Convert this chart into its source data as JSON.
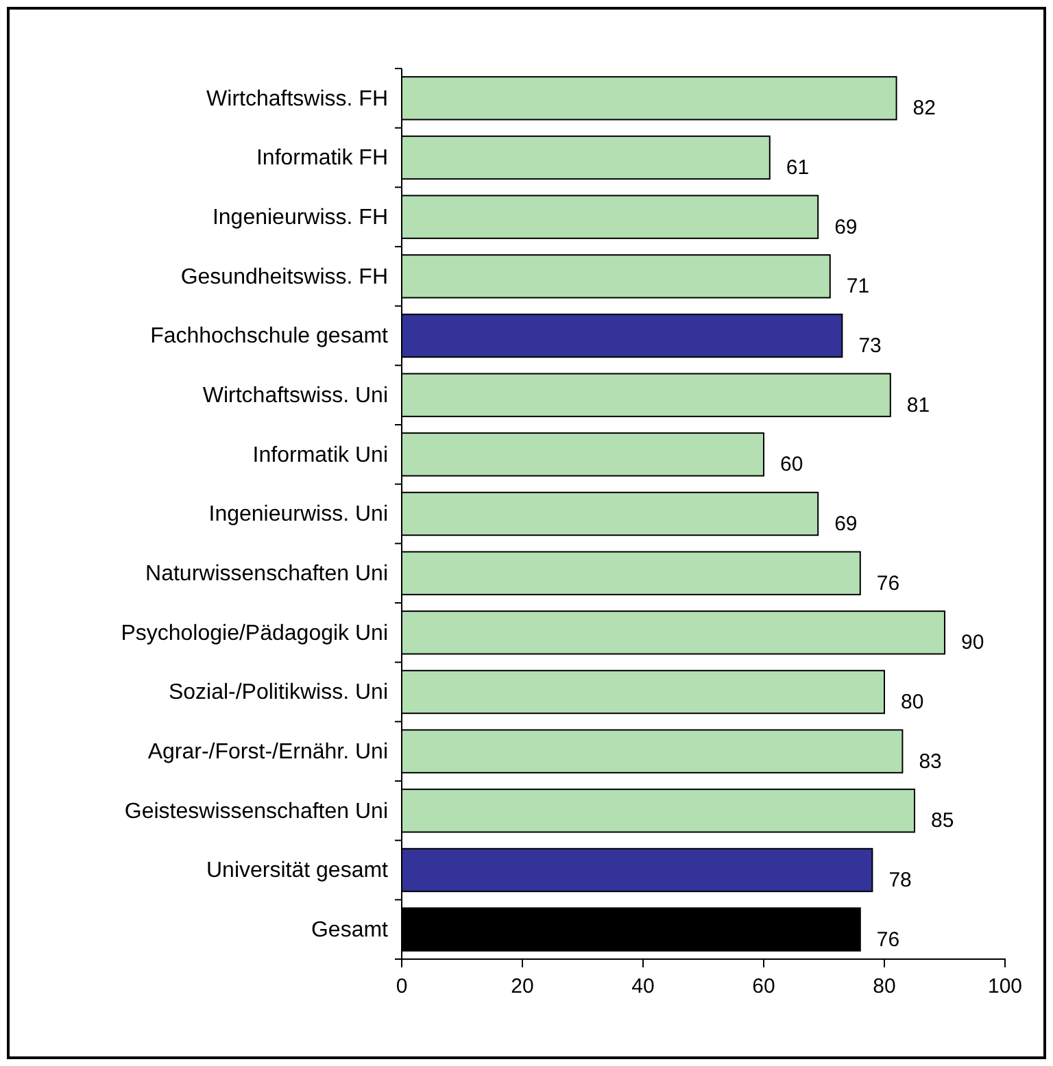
{
  "chart_data": {
    "type": "bar",
    "orientation": "horizontal",
    "categories": [
      "Wirtchaftswiss. FH",
      "Informatik FH",
      "Ingenieurwiss. FH",
      "Gesundheitswiss. FH",
      "Fachhochschule gesamt",
      "Wirtchaftswiss. Uni",
      "Informatik Uni",
      "Ingenieurwiss. Uni",
      "Naturwissenschaften Uni",
      "Psychologie/Pädagogik Uni",
      "Sozial-/Politikwiss. Uni",
      "Agrar-/Forst-/Ernähr. Uni",
      "Geisteswissenschaften Uni",
      "Universität gesamt",
      "Gesamt"
    ],
    "values": [
      82,
      61,
      69,
      71,
      73,
      81,
      60,
      69,
      76,
      90,
      80,
      83,
      85,
      78,
      76
    ],
    "colors": [
      "#b3dfb3",
      "#b3dfb3",
      "#b3dfb3",
      "#b3dfb3",
      "#333399",
      "#b3dfb3",
      "#b3dfb3",
      "#b3dfb3",
      "#b3dfb3",
      "#b3dfb3",
      "#b3dfb3",
      "#b3dfb3",
      "#b3dfb3",
      "#333399",
      "#000000"
    ],
    "xlim": [
      0,
      100
    ],
    "xticks": [
      0,
      20,
      40,
      60,
      80,
      100
    ],
    "grid": false,
    "data_labels": true
  }
}
